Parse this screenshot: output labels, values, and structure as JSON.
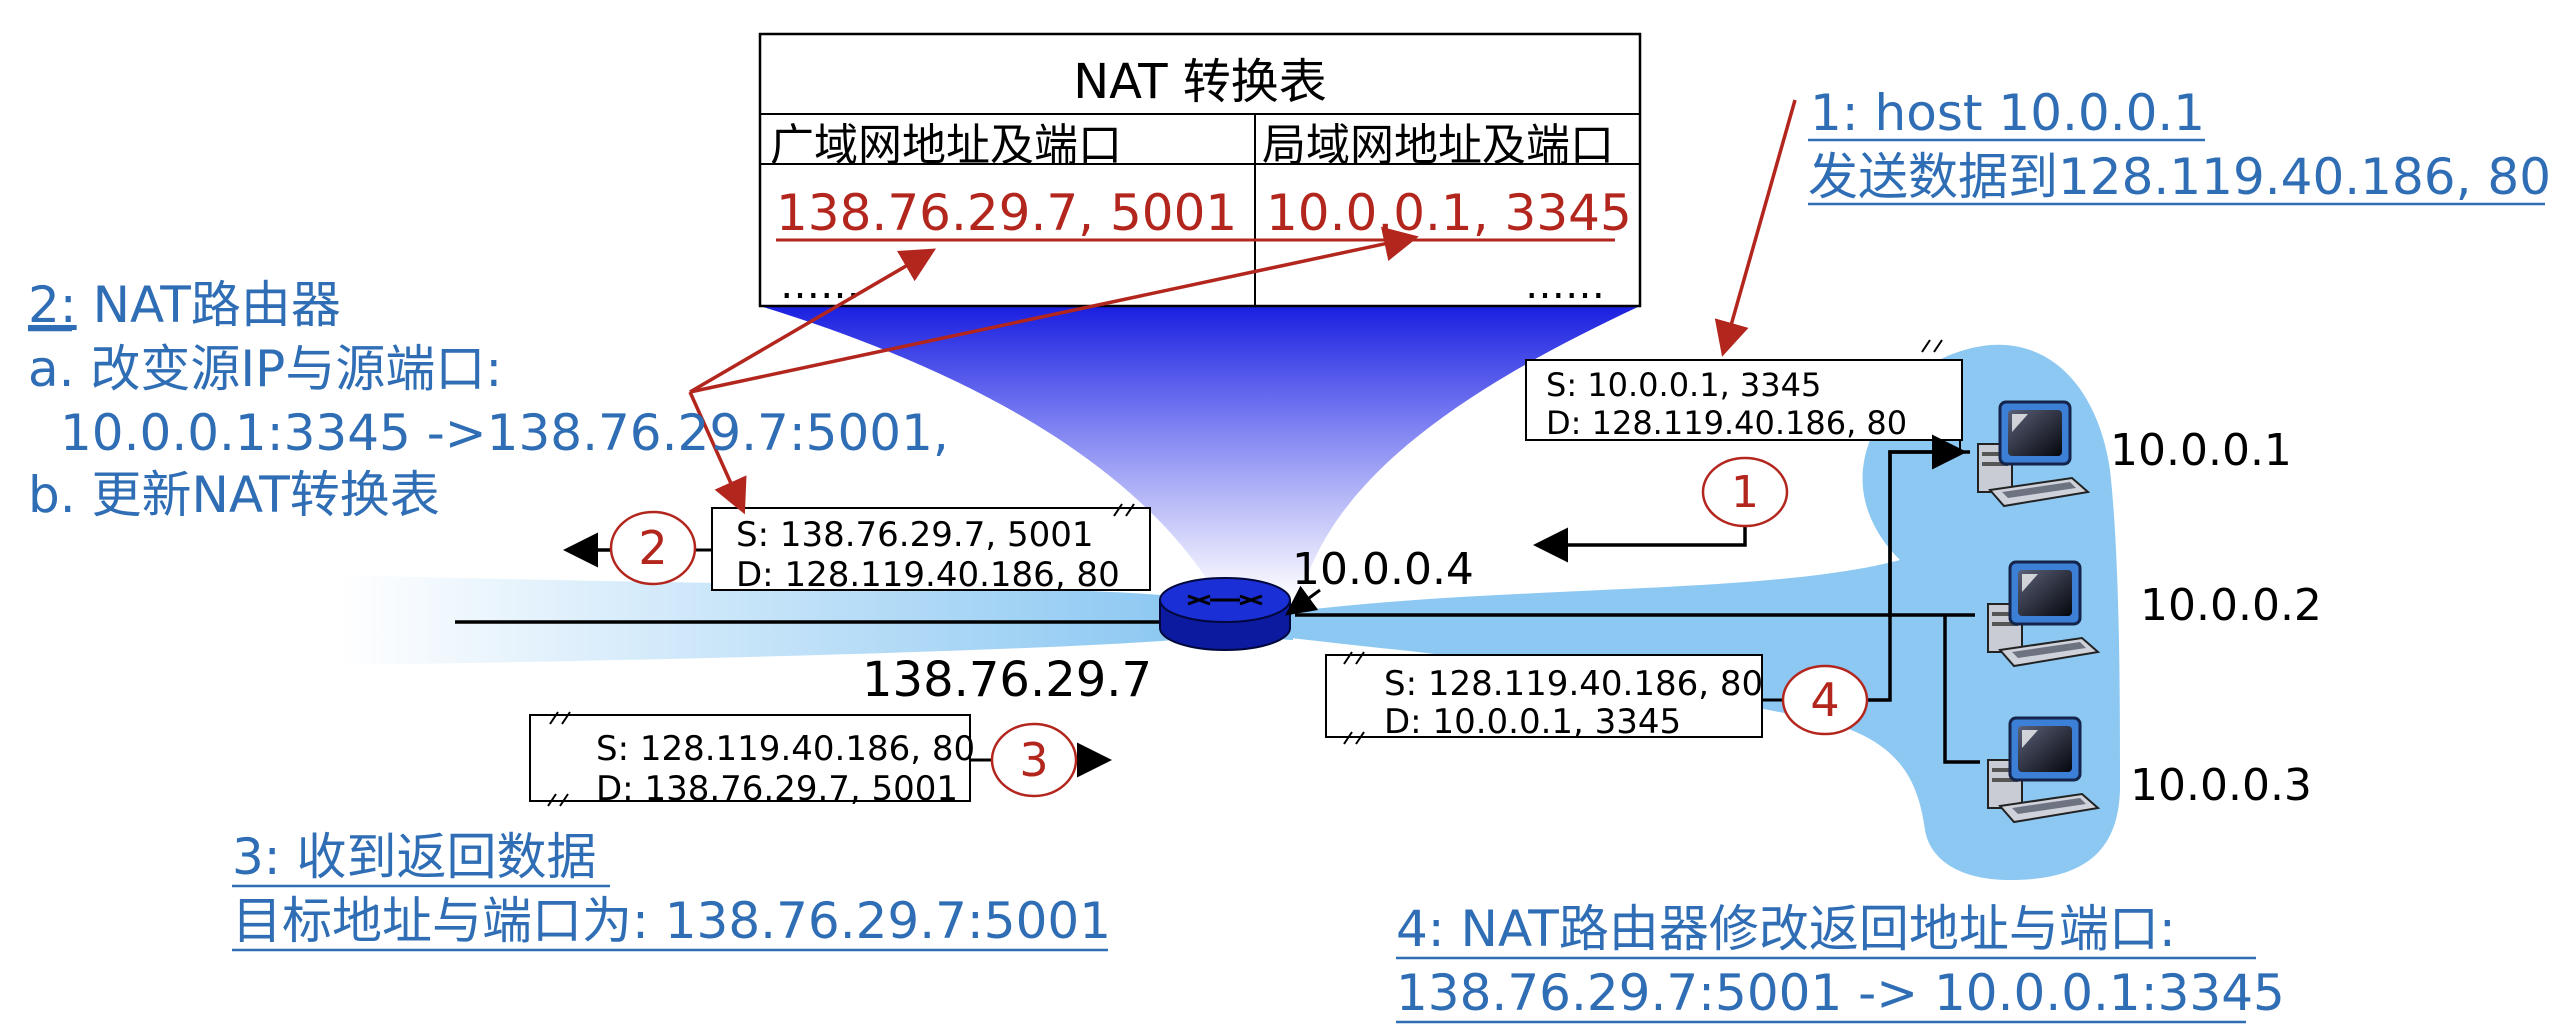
{
  "nat_table": {
    "title": "NAT 转换表",
    "col_wan": "广域网地址及端口",
    "col_lan": "局域网地址及端口",
    "row_wan": "138.76.29.7, 5001",
    "row_lan": "10.0.0.1, 3345",
    "ellipsis_left": "……",
    "ellipsis_right": "……"
  },
  "notes": {
    "step1_line1": "1: host 10.0.0.1",
    "step1_line2": "发送数据到128.119.40.186, 80",
    "step2_prefix": "2:",
    "step2_title": " NAT路由器",
    "step2_a": "a. 改变源IP与源端口:",
    "step2_a_detail": "10.0.0.1:3345 ->138.76.29.7:5001,",
    "step2_b": "b. 更新NAT转换表",
    "step3_line1": "3: 收到返回数据",
    "step3_line2": "目标地址与端口为: 138.76.29.7:5001",
    "step4_line1": "4: NAT路由器修改返回地址与端口:",
    "step4_line2": "138.76.29.7:5001 -> 10.0.0.1:3345"
  },
  "packets": {
    "p1_src": "S: 10.0.0.1, 3345",
    "p1_dst": "D: 128.119.40.186, 80",
    "p2_src": "S: 138.76.29.7, 5001",
    "p2_dst": "D: 128.119.40.186, 80",
    "p3_src": "S: 128.119.40.186, 80",
    "p3_dst": "D: 138.76.29.7, 5001",
    "p4_src": "S: 128.119.40.186, 80",
    "p4_dst": "D: 10.0.0.1, 3345"
  },
  "step_markers": [
    "1",
    "2",
    "3",
    "4"
  ],
  "addresses": {
    "router_lan": "10.0.0.4",
    "router_wan": "138.76.29.7",
    "host1": "10.0.0.1",
    "host2": "10.0.0.2",
    "host3": "10.0.0.3"
  },
  "colors": {
    "accent_blue": "#2f6db5",
    "red": "#b3261e",
    "lan_fill": "#8cc8f2",
    "router_blue": "#1a2fd6"
  },
  "icons": [
    "router-icon",
    "computer-icon"
  ]
}
